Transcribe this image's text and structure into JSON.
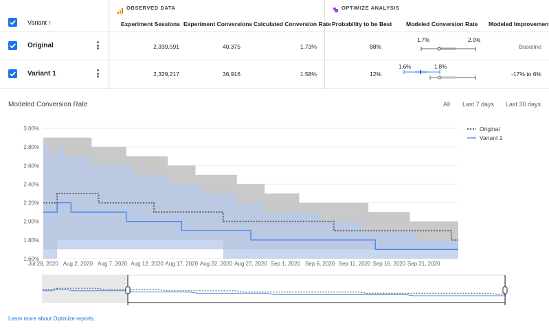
{
  "table": {
    "groups": {
      "observed": "OBSERVED DATA",
      "optimize": "OPTIMIZE ANALYSIS"
    },
    "headers": {
      "variant": "Variant",
      "sessions": "Experiment Sessions",
      "conversions": "Experiment Conversions",
      "calc_rate": "Calculated Conversion Rate",
      "prob_best": "Probability to be Best",
      "modeled_rate": "Modeled Conversion Rate",
      "improvement": "Modeled Improvement"
    },
    "rows": [
      {
        "name": "Original",
        "sessions": "2,339,591",
        "conversions": "40,375",
        "calc_rate": "1.73%",
        "prob_best": "88%",
        "range_low": "1.7%",
        "range_high": "2.0%",
        "improvement": "Baseline",
        "checked": true
      },
      {
        "name": "Variant 1",
        "sessions": "2,329,217",
        "conversions": "36,916",
        "calc_rate": "1.58%",
        "prob_best": "12%",
        "range_low": "1.6%",
        "range_high": "1.8%",
        "improvement": "-17% to 6%",
        "checked": true
      }
    ]
  },
  "chart_section": {
    "title": "Modeled Conversion Rate",
    "tabs": [
      "All",
      "Last 7 days",
      "Last 30 days"
    ]
  },
  "chart_data": {
    "type": "line",
    "x": [
      "Jul 28, 2020",
      "Jul 29",
      "Jul 30",
      "Jul 31",
      "Aug 1",
      "Aug 2, 2020",
      "Aug 3",
      "Aug 4",
      "Aug 5",
      "Aug 6",
      "Aug 7, 2020",
      "Aug 8",
      "Aug 9",
      "Aug 10",
      "Aug 11",
      "Aug 12, 2020",
      "Aug 13",
      "Aug 14",
      "Aug 15",
      "Aug 16",
      "Aug 17, 2020",
      "Aug 18",
      "Aug 19",
      "Aug 20",
      "Aug 21",
      "Aug 22, 2020",
      "Aug 23",
      "Aug 24",
      "Aug 25",
      "Aug 26",
      "Aug 27, 2020",
      "Aug 28",
      "Aug 29",
      "Aug 30",
      "Aug 31",
      "Sep 1, 2020",
      "Sep 2",
      "Sep 3",
      "Sep 4",
      "Sep 5",
      "Sep 6, 2020",
      "Sep 7",
      "Sep 8",
      "Sep 9",
      "Sep 10",
      "Sep 11, 2020",
      "Sep 12",
      "Sep 13",
      "Sep 14",
      "Sep 15",
      "Sep 16, 2020",
      "Sep 17",
      "Sep 18",
      "Sep 19",
      "Sep 20",
      "Sep 21, 2020",
      "Sep 22",
      "Sep 23",
      "Sep 24",
      "Sep 25",
      "Sep 26"
    ],
    "x_ticks": [
      "Jul 28, 2020",
      "Aug 2, 2020",
      "Aug 7, 2020",
      "Aug 12, 2020",
      "Aug 17, 2020",
      "Aug 22, 2020",
      "Aug 27, 2020",
      "Sep 1, 2020",
      "Sep 6, 2020",
      "Sep 11, 2020",
      "Sep 16, 2020",
      "Sep 21, 2020"
    ],
    "y_ticks": [
      "3.00%",
      "2.80%",
      "2.60%",
      "2.40%",
      "2.20%",
      "2.00%",
      "1.80%",
      "1.60%"
    ],
    "ylim": [
      1.6,
      3.0
    ],
    "legend_position": "top-right",
    "series": [
      {
        "name": "Original",
        "color": "#5f6368",
        "style": "dotted",
        "values": [
          2.2,
          2.2,
          2.3,
          2.3,
          2.3,
          2.3,
          2.3,
          2.3,
          2.2,
          2.2,
          2.2,
          2.2,
          2.2,
          2.2,
          2.2,
          2.2,
          2.1,
          2.1,
          2.1,
          2.1,
          2.1,
          2.1,
          2.1,
          2.1,
          2.1,
          2.1,
          2.0,
          2.0,
          2.0,
          2.0,
          2.0,
          2.0,
          2.0,
          2.0,
          2.0,
          2.0,
          2.0,
          2.0,
          2.0,
          2.0,
          2.0,
          2.0,
          1.9,
          1.9,
          1.9,
          1.9,
          1.9,
          1.9,
          1.9,
          1.9,
          1.9,
          1.9,
          1.9,
          1.9,
          1.9,
          1.9,
          1.9,
          1.9,
          1.9,
          1.8,
          1.8
        ],
        "upper": [
          2.9,
          2.9,
          2.9,
          2.9,
          2.9,
          2.9,
          2.9,
          2.8,
          2.8,
          2.8,
          2.8,
          2.8,
          2.7,
          2.7,
          2.7,
          2.7,
          2.7,
          2.7,
          2.6,
          2.6,
          2.6,
          2.6,
          2.5,
          2.5,
          2.5,
          2.5,
          2.5,
          2.5,
          2.4,
          2.4,
          2.4,
          2.4,
          2.3,
          2.3,
          2.3,
          2.3,
          2.3,
          2.2,
          2.2,
          2.2,
          2.2,
          2.2,
          2.2,
          2.2,
          2.2,
          2.2,
          2.2,
          2.1,
          2.1,
          2.1,
          2.1,
          2.1,
          2.1,
          2.0,
          2.0,
          2.0,
          2.0,
          2.0,
          2.0,
          2.0,
          2.0
        ],
        "lower": [
          1.7,
          1.7,
          1.8,
          1.8,
          1.8,
          1.8,
          1.8,
          1.8,
          1.8,
          1.8,
          1.8,
          1.8,
          1.8,
          1.8,
          1.8,
          1.8,
          1.8,
          1.8,
          1.8,
          1.8,
          1.8,
          1.8,
          1.8,
          1.8,
          1.8,
          1.8,
          1.7,
          1.7,
          1.7,
          1.7,
          1.7,
          1.7,
          1.7,
          1.7,
          1.7,
          1.7,
          1.7,
          1.7,
          1.7,
          1.7,
          1.7,
          1.7,
          1.7,
          1.7,
          1.7,
          1.7,
          1.7,
          1.7,
          1.7,
          1.7,
          1.7,
          1.7,
          1.7,
          1.7,
          1.7,
          1.7,
          1.7,
          1.7,
          1.7,
          1.7,
          1.7
        ]
      },
      {
        "name": "Variant 1",
        "color": "#4285f4",
        "style": "solid",
        "values": [
          2.1,
          2.1,
          2.2,
          2.2,
          2.1,
          2.1,
          2.1,
          2.1,
          2.1,
          2.1,
          2.1,
          2.1,
          2.0,
          2.0,
          2.0,
          2.0,
          2.0,
          2.0,
          2.0,
          2.0,
          1.9,
          1.9,
          1.9,
          1.9,
          1.9,
          1.9,
          1.9,
          1.9,
          1.9,
          1.9,
          1.8,
          1.8,
          1.8,
          1.8,
          1.8,
          1.8,
          1.8,
          1.8,
          1.8,
          1.8,
          1.8,
          1.8,
          1.8,
          1.8,
          1.8,
          1.8,
          1.8,
          1.8,
          1.7,
          1.7,
          1.7,
          1.7,
          1.7,
          1.7,
          1.7,
          1.7,
          1.7,
          1.7,
          1.7,
          1.7,
          1.7
        ],
        "upper": [
          2.8,
          2.7,
          2.8,
          2.7,
          2.7,
          2.7,
          2.7,
          2.6,
          2.6,
          2.6,
          2.6,
          2.6,
          2.6,
          2.5,
          2.5,
          2.5,
          2.5,
          2.5,
          2.4,
          2.4,
          2.4,
          2.4,
          2.4,
          2.3,
          2.3,
          2.3,
          2.3,
          2.3,
          2.2,
          2.2,
          2.2,
          2.2,
          2.1,
          2.1,
          2.1,
          2.1,
          2.1,
          2.1,
          2.1,
          2.1,
          2.0,
          2.0,
          2.0,
          2.0,
          2.0,
          2.0,
          1.9,
          1.9,
          1.9,
          1.9,
          1.9,
          1.9,
          1.9,
          1.9,
          1.8,
          1.8,
          1.8,
          1.8,
          1.8,
          1.8,
          1.8
        ],
        "lower": [
          1.6,
          1.6,
          1.7,
          1.7,
          1.7,
          1.7,
          1.7,
          1.7,
          1.7,
          1.7,
          1.7,
          1.7,
          1.7,
          1.7,
          1.7,
          1.7,
          1.7,
          1.7,
          1.7,
          1.7,
          1.7,
          1.7,
          1.7,
          1.7,
          1.7,
          1.7,
          1.6,
          1.6,
          1.6,
          1.6,
          1.6,
          1.6,
          1.6,
          1.6,
          1.6,
          1.6,
          1.6,
          1.6,
          1.6,
          1.6,
          1.6,
          1.6,
          1.6,
          1.6,
          1.6,
          1.6,
          1.6,
          1.6,
          1.6,
          1.6,
          1.6,
          1.6,
          1.6,
          1.6,
          1.6,
          1.6,
          1.6,
          1.6,
          1.6,
          1.6,
          1.6
        ]
      }
    ]
  },
  "footer": {
    "link": "Learn more about Optimize reports."
  },
  "colors": {
    "accent": "#1a73e8",
    "band_gray": "#c6c6c6",
    "band_blue": "#b7c8e9",
    "overlap": "#8b9bb8"
  }
}
